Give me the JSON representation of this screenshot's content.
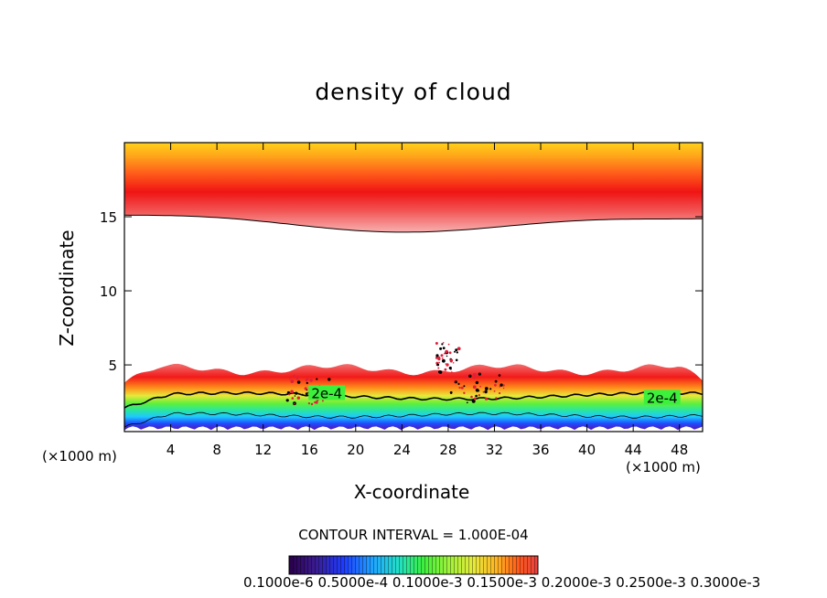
{
  "chart_data": {
    "type": "heatmap",
    "title": "density of cloud",
    "xlabel": "X-coordinate",
    "ylabel": "Z-coordinate",
    "x_unit_label": "(×1000 m)",
    "xlim": [
      0,
      50
    ],
    "ylim": [
      0.5,
      20
    ],
    "x_ticks": [
      4,
      8,
      12,
      16,
      20,
      24,
      28,
      32,
      36,
      40,
      44,
      48
    ],
    "y_ticks": [
      5,
      10,
      15
    ],
    "contour_interval_text": "CONTOUR INTERVAL = 1.000E-04",
    "contour_labels": [
      {
        "text": "2e-4",
        "x": 17.5,
        "z": 3.0
      },
      {
        "text": "2e-4",
        "x": 46.5,
        "z": 2.7
      }
    ],
    "colorbar": {
      "labels": [
        "0.1000e-6",
        "0.5000e-4",
        "0.1000e-3",
        "0.1500e-3",
        "0.2000e-3",
        "0.2500e-3",
        "0.3000e-3"
      ],
      "label_text": "0.1000e-6 0.5000e-4 0.1000e-3 0.1500e-3 0.2000e-3 0.2500e-3 0.3000e-3",
      "colors": [
        "#2a004a",
        "#3a1a8c",
        "#1e3cff",
        "#1fa8ff",
        "#21e0c8",
        "#3cf03c",
        "#9ef23a",
        "#e6ea3a",
        "#ffb020",
        "#ff5a1a",
        "#ff1a1a",
        "#e84040"
      ]
    },
    "upper_band": {
      "z_bottom": 15,
      "z_top": 19.6,
      "peak_z": 17.0
    },
    "lower_band": {
      "z_bottom": 0.6,
      "z_top": 5.0
    }
  }
}
